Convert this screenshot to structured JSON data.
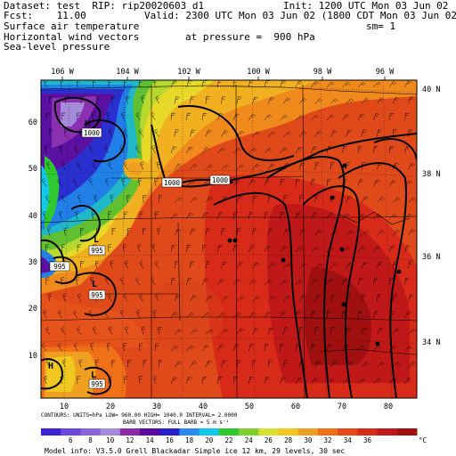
{
  "header": {
    "dataset": "Dataset: test  RIP: rip20020603 d1",
    "init": "Init: 1200 UTC Mon 03 Jun 02",
    "fcst": "Fcst:    11.00",
    "valid": "Valid: 2300 UTC Mon 03 Jun 02 (1800 CDT Mon 03 Jun 02)",
    "field1": "Surface air temperature",
    "sm": "sm= 1",
    "field2": "Horizontal wind vectors",
    "pressure": "at pressure =  900 hPa",
    "field3": "Sea-level pressure"
  },
  "longitude_labels": [
    "106 W",
    "104 W",
    "102 W",
    "100 W",
    "98 W",
    "96 W"
  ],
  "latitude_labels": [
    "40 N",
    "38 N",
    "36 N",
    "34 N"
  ],
  "y_ticks": [
    "60",
    "50",
    "40",
    "30",
    "20",
    "10"
  ],
  "x_ticks": [
    "10",
    "20",
    "30",
    "40",
    "50",
    "60",
    "70",
    "80"
  ],
  "contour_labels": [
    "1000",
    "1000",
    "1000",
    "995",
    "995",
    "995",
    "995"
  ],
  "pressure_centers": [
    "H",
    "L",
    "L",
    "H",
    "L"
  ],
  "footer": {
    "contours": "CONTOURS:  UNITS=hPa   LOW=  960.00        HIGH=  1040.0       INTERVAL=   2.0000",
    "barb": "BARB VECTORS:  FULL BARB = 5 m s⁻¹",
    "model": "Model info: V3.5.0  Grell     Blackadar  Simple ice    12 km,  29 levels,   30 sec"
  },
  "colorbar": {
    "labels": [
      "6",
      "8",
      "10",
      "12",
      "14",
      "16",
      "18",
      "20",
      "22",
      "24",
      "26",
      "28",
      "30",
      "32",
      "34",
      "36"
    ],
    "unit": "°C",
    "colors": [
      "#3a22d8",
      "#6a48e0",
      "#8a64d8",
      "#a48ad8",
      "#8a2aa8",
      "#5a08a0",
      "#2a20d0",
      "#2a8af0",
      "#10c8e8",
      "#30c830",
      "#80d030",
      "#d8e030",
      "#f0c820",
      "#f0a020",
      "#f07018",
      "#e84818",
      "#d82a18",
      "#c01818",
      "#a01010"
    ]
  }
}
